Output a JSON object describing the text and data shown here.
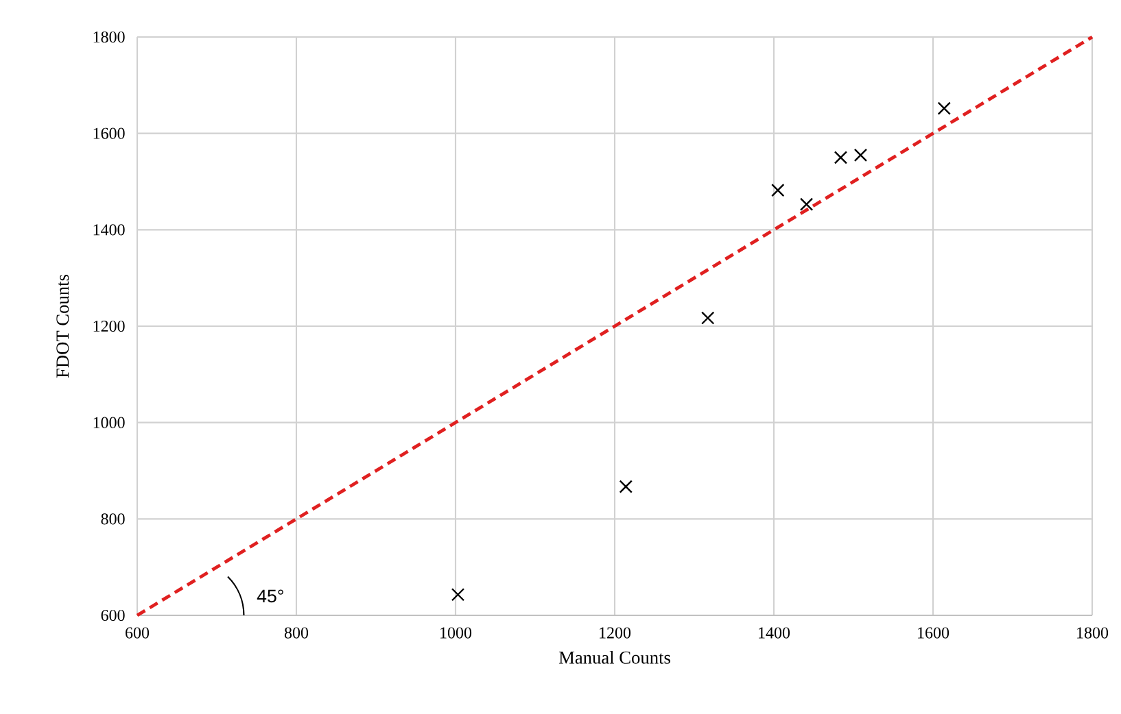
{
  "chart_data": {
    "type": "scatter",
    "xlabel": "Manual Counts",
    "ylabel": "FDOT Counts",
    "xlim": [
      600,
      1800
    ],
    "ylim": [
      600,
      1800
    ],
    "xticks": [
      600,
      800,
      1000,
      1200,
      1400,
      1600,
      1800
    ],
    "yticks": [
      600,
      800,
      1000,
      1200,
      1400,
      1600,
      1800
    ],
    "grid": true,
    "marker": "cross",
    "annotations": [
      "45°"
    ],
    "series": [
      {
        "color": "#000000",
        "x": [
          1003,
          1214,
          1317,
          1405,
          1441,
          1484,
          1509,
          1614
        ],
        "values": [
          643,
          867,
          1217,
          1482,
          1453,
          1550,
          1555,
          1652
        ]
      },
      {
        "type": "line",
        "color": "#e02020",
        "line_style": "dashed",
        "marker": "none",
        "x": [
          600,
          1800
        ],
        "values": [
          600,
          1800
        ]
      }
    ]
  }
}
